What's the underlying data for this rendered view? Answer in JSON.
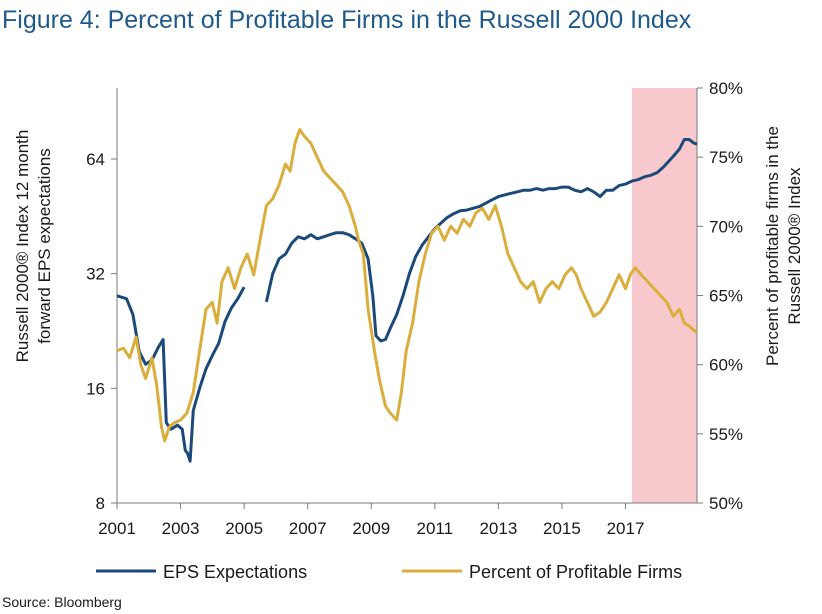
{
  "chart_data": {
    "type": "line",
    "title": "Figure 4: Percent of Profitable Firms in the Russell 2000 Index",
    "x_ticks": [
      "2001",
      "2003",
      "2005",
      "2007",
      "2009",
      "2011",
      "2013",
      "2015",
      "2017"
    ],
    "xlim": [
      2001,
      2019.25
    ],
    "left_axis": {
      "label_line1": "Russell 2000® Index 12 month",
      "label_line2": "forward EPS expectations",
      "scale": "log2",
      "ylim": [
        8,
        90
      ],
      "ticks": [
        "8",
        "16",
        "32",
        "64"
      ]
    },
    "right_axis": {
      "label_line1": "Percent of profitable firms in the",
      "label_line2": "Russell 2000® Index",
      "ylim": [
        50,
        80
      ],
      "ticks": [
        "50%",
        "55%",
        "60%",
        "65%",
        "70%",
        "75%",
        "80%"
      ]
    },
    "highlight": {
      "x_start": 2017.2,
      "x_end": 2019.25,
      "color": "#f8c9cc"
    },
    "series": [
      {
        "name": "EPS Expectations",
        "axis": "left",
        "color": "#1b4a7a",
        "segments": [
          [
            [
              2001.0,
              28
            ],
            [
              2001.3,
              27.5
            ],
            [
              2001.5,
              25
            ],
            [
              2001.7,
              20
            ],
            [
              2001.9,
              18.5
            ],
            [
              2002.1,
              19
            ],
            [
              2002.3,
              20.5
            ],
            [
              2002.45,
              21.5
            ],
            [
              2002.55,
              13
            ],
            [
              2002.7,
              12.5
            ],
            [
              2002.9,
              12.8
            ],
            [
              2003.05,
              12.5
            ],
            [
              2003.15,
              11
            ],
            [
              2003.22,
              10.8
            ],
            [
              2003.3,
              10.3
            ],
            [
              2003.4,
              14
            ],
            [
              2003.6,
              16
            ],
            [
              2003.8,
              18
            ],
            [
              2004.0,
              19.5
            ],
            [
              2004.2,
              21
            ],
            [
              2004.4,
              24
            ],
            [
              2004.6,
              26
            ],
            [
              2004.8,
              27.5
            ],
            [
              2005.0,
              29.5
            ]
          ],
          [
            [
              2005.7,
              27
            ],
            [
              2005.9,
              32
            ],
            [
              2006.1,
              35
            ],
            [
              2006.3,
              36
            ],
            [
              2006.5,
              38.5
            ],
            [
              2006.7,
              40
            ],
            [
              2006.9,
              39.5
            ],
            [
              2007.1,
              40.5
            ],
            [
              2007.3,
              39.5
            ],
            [
              2007.5,
              40
            ],
            [
              2007.7,
              40.5
            ],
            [
              2007.9,
              41
            ],
            [
              2008.1,
              41
            ],
            [
              2008.3,
              40.5
            ],
            [
              2008.5,
              39.5
            ],
            [
              2008.7,
              38.5
            ],
            [
              2008.9,
              35
            ],
            [
              2009.05,
              28
            ],
            [
              2009.15,
              22
            ],
            [
              2009.3,
              21.3
            ],
            [
              2009.45,
              21.5
            ],
            [
              2009.6,
              23
            ],
            [
              2009.8,
              25
            ],
            [
              2010.0,
              28
            ],
            [
              2010.2,
              32
            ],
            [
              2010.4,
              35.5
            ],
            [
              2010.6,
              38
            ],
            [
              2010.8,
              40
            ],
            [
              2011.0,
              42
            ],
            [
              2011.2,
              43.5
            ],
            [
              2011.4,
              45
            ],
            [
              2011.6,
              46
            ],
            [
              2011.8,
              46.8
            ],
            [
              2012.0,
              47
            ],
            [
              2012.2,
              47.5
            ],
            [
              2012.4,
              48
            ],
            [
              2012.6,
              49
            ],
            [
              2012.8,
              50
            ],
            [
              2013.0,
              51
            ],
            [
              2013.2,
              51.5
            ],
            [
              2013.4,
              52
            ],
            [
              2013.6,
              52.5
            ],
            [
              2013.8,
              53
            ],
            [
              2014.0,
              53
            ],
            [
              2014.2,
              53.5
            ],
            [
              2014.4,
              53
            ],
            [
              2014.6,
              53.5
            ],
            [
              2014.8,
              53.5
            ],
            [
              2015.0,
              54
            ],
            [
              2015.2,
              54
            ],
            [
              2015.4,
              53
            ],
            [
              2015.6,
              52.5
            ],
            [
              2015.8,
              53.5
            ],
            [
              2016.0,
              52.5
            ],
            [
              2016.2,
              51
            ],
            [
              2016.4,
              53
            ],
            [
              2016.6,
              53
            ],
            [
              2016.8,
              54.5
            ],
            [
              2017.0,
              55
            ],
            [
              2017.2,
              56
            ],
            [
              2017.4,
              56.5
            ],
            [
              2017.6,
              57.5
            ],
            [
              2017.8,
              58
            ],
            [
              2018.0,
              59
            ],
            [
              2018.2,
              61
            ],
            [
              2018.35,
              63
            ],
            [
              2018.5,
              65
            ],
            [
              2018.7,
              68
            ],
            [
              2018.85,
              72
            ],
            [
              2019.0,
              72
            ],
            [
              2019.15,
              70.5
            ],
            [
              2019.25,
              70
            ]
          ]
        ]
      },
      {
        "name": "Percent of Profitable Firms",
        "axis": "right",
        "color": "#d9ae3c",
        "segments": [
          [
            [
              2001.0,
              61
            ],
            [
              2001.2,
              61.2
            ],
            [
              2001.4,
              60.5
            ],
            [
              2001.6,
              62
            ],
            [
              2001.75,
              60
            ],
            [
              2001.9,
              59
            ],
            [
              2002.1,
              60.5
            ],
            [
              2002.25,
              58.5
            ],
            [
              2002.4,
              55.5
            ],
            [
              2002.5,
              54.5
            ],
            [
              2002.65,
              55.5
            ],
            [
              2002.8,
              55.8
            ],
            [
              2003.0,
              56
            ],
            [
              2003.2,
              56.5
            ],
            [
              2003.4,
              58
            ],
            [
              2003.6,
              61
            ],
            [
              2003.8,
              64
            ],
            [
              2004.0,
              64.5
            ],
            [
              2004.15,
              63
            ],
            [
              2004.3,
              66
            ],
            [
              2004.5,
              67
            ],
            [
              2004.7,
              65.5
            ],
            [
              2004.9,
              67
            ],
            [
              2005.1,
              68
            ],
            [
              2005.3,
              66.5
            ],
            [
              2005.5,
              69
            ],
            [
              2005.7,
              71.5
            ],
            [
              2005.9,
              72
            ],
            [
              2006.1,
              73
            ],
            [
              2006.3,
              74.5
            ],
            [
              2006.45,
              74
            ],
            [
              2006.6,
              76
            ],
            [
              2006.75,
              77
            ],
            [
              2006.9,
              76.5
            ],
            [
              2007.1,
              76
            ],
            [
              2007.3,
              75
            ],
            [
              2007.5,
              74
            ],
            [
              2007.7,
              73.5
            ],
            [
              2007.9,
              73
            ],
            [
              2008.1,
              72.5
            ],
            [
              2008.3,
              71.5
            ],
            [
              2008.5,
              70
            ],
            [
              2008.6,
              69
            ],
            [
              2008.75,
              68
            ],
            [
              2008.9,
              64
            ],
            [
              2009.1,
              61
            ],
            [
              2009.25,
              59
            ],
            [
              2009.45,
              57
            ],
            [
              2009.6,
              56.5
            ],
            [
              2009.8,
              56
            ],
            [
              2009.95,
              58
            ],
            [
              2010.1,
              61
            ],
            [
              2010.3,
              63
            ],
            [
              2010.5,
              66
            ],
            [
              2010.7,
              68
            ],
            [
              2010.9,
              69.5
            ],
            [
              2011.1,
              70
            ],
            [
              2011.3,
              69
            ],
            [
              2011.5,
              70
            ],
            [
              2011.7,
              69.5
            ],
            [
              2011.9,
              70.5
            ],
            [
              2012.1,
              70
            ],
            [
              2012.3,
              71
            ],
            [
              2012.5,
              71.3
            ],
            [
              2012.7,
              70.5
            ],
            [
              2012.9,
              71.5
            ],
            [
              2013.1,
              70
            ],
            [
              2013.3,
              68
            ],
            [
              2013.5,
              67
            ],
            [
              2013.7,
              66
            ],
            [
              2013.9,
              65.5
            ],
            [
              2014.1,
              66
            ],
            [
              2014.3,
              64.5
            ],
            [
              2014.5,
              65.5
            ],
            [
              2014.7,
              66
            ],
            [
              2014.9,
              65.5
            ],
            [
              2015.1,
              66.5
            ],
            [
              2015.3,
              67
            ],
            [
              2015.45,
              66.5
            ],
            [
              2015.6,
              65.5
            ],
            [
              2015.8,
              64.5
            ],
            [
              2016.0,
              63.5
            ],
            [
              2016.2,
              63.8
            ],
            [
              2016.4,
              64.5
            ],
            [
              2016.6,
              65.5
            ],
            [
              2016.8,
              66.5
            ],
            [
              2017.0,
              65.5
            ],
            [
              2017.15,
              66.5
            ],
            [
              2017.3,
              67
            ],
            [
              2017.5,
              66.5
            ],
            [
              2017.7,
              66
            ],
            [
              2017.9,
              65.5
            ],
            [
              2018.1,
              65
            ],
            [
              2018.3,
              64.5
            ],
            [
              2018.5,
              63.5
            ],
            [
              2018.7,
              64
            ],
            [
              2018.85,
              63
            ],
            [
              2019.0,
              62.8
            ],
            [
              2019.15,
              62.5
            ],
            [
              2019.25,
              62.3
            ]
          ]
        ]
      }
    ],
    "legend_position": "bottom",
    "source": "Source: Bloomberg"
  }
}
